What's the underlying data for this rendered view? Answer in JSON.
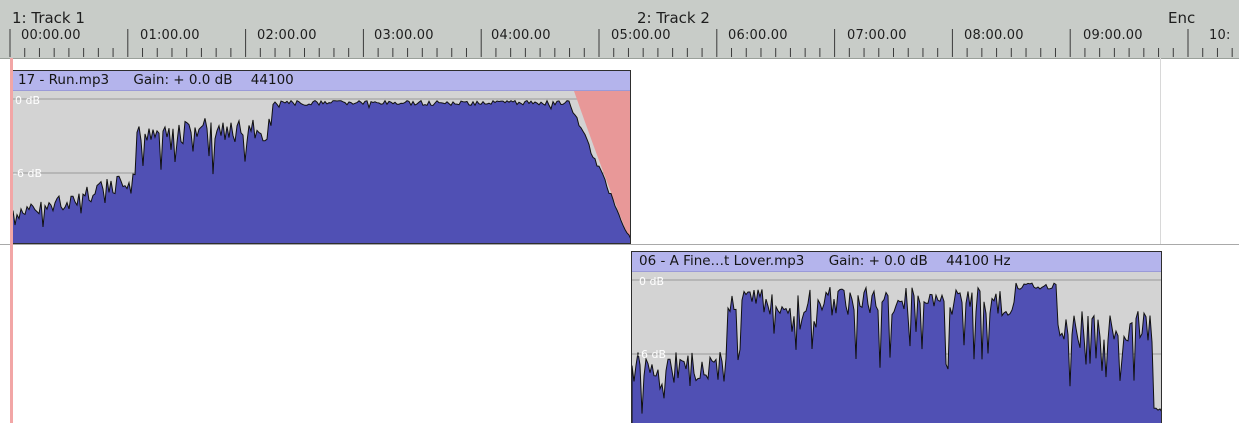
{
  "timeline": {
    "markers": [
      {
        "label": "1: Track 1",
        "color": "#2bbf2b",
        "icon": "start-marker-flag"
      },
      {
        "label": "2: Track 2",
        "color": "#2bbf2b",
        "icon": "track-marker-flag"
      },
      {
        "label": "Enc",
        "color": "#e01010",
        "icon": "end-marker-flag"
      }
    ],
    "ticks": [
      "00:00.00",
      "01:00.00",
      "02:00.00",
      "03:00.00",
      "04:00.00",
      "05:00.00",
      "06:00.00",
      "07:00.00",
      "08:00.00",
      "09:00.00",
      "10:"
    ]
  },
  "regions": [
    {
      "file": "17 - Run.mp3",
      "gain": "Gain: + 0.0 dB",
      "rate": "44100",
      "db_top": "0 dB",
      "db_mid": "-6 dB",
      "fade_out_color": "#e89898",
      "wave_color": "#5050b4"
    },
    {
      "file": "06 - A Fine…t Lover.mp3",
      "gain": "Gain: + 0.0 dB",
      "rate": "44100 Hz",
      "db_top": "0 dB",
      "db_mid": "-6 dB",
      "wave_color": "#5050b4"
    }
  ]
}
